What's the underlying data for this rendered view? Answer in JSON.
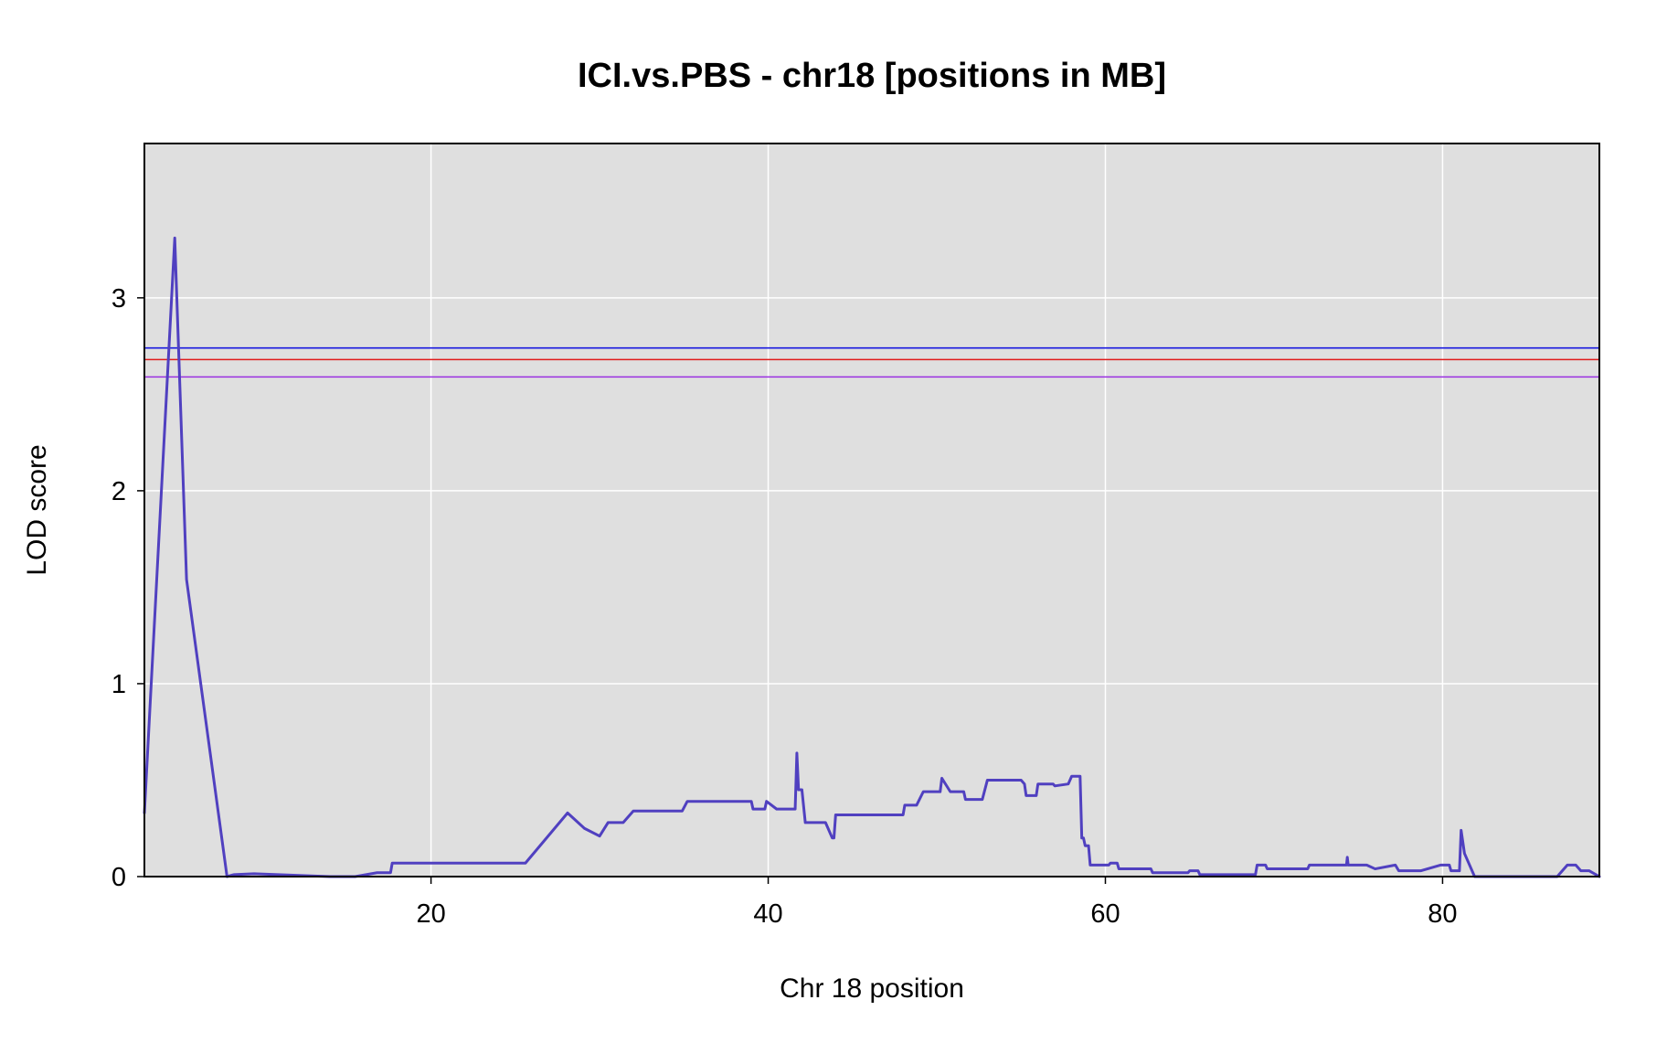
{
  "chart_data": {
    "type": "line",
    "title": "ICI.vs.PBS - chr18 [positions in MB]",
    "xlabel": "Chr 18 position",
    "ylabel": "LOD score",
    "xlim": [
      3,
      89.3
    ],
    "ylim": [
      0,
      3.8
    ],
    "x_ticks": [
      20,
      40,
      60,
      80
    ],
    "y_ticks": [
      0,
      1,
      2,
      3
    ],
    "x_tick_labels": [
      "20",
      "40",
      "60",
      "80"
    ],
    "y_tick_labels": [
      "0",
      "1",
      "2",
      "3"
    ],
    "grid": true,
    "colors": {
      "panel_background": "#dfdfdf",
      "grid": "#ffffff",
      "series": "#5040c0",
      "threshold_blue": "#1a1adf",
      "threshold_red": "#e01a1a",
      "threshold_purple": "#9a30e0",
      "frame": "#000000"
    },
    "thresholds": [
      {
        "y": 2.74,
        "color": "#1a1adf"
      },
      {
        "y": 2.68,
        "color": "#e01a1a"
      },
      {
        "y": 2.59,
        "color": "#9a30e0"
      }
    ],
    "series": [
      {
        "x": [
          3.0,
          4.8,
          5.5,
          7.9,
          8.3,
          9.5,
          14.0,
          15.5,
          16.8,
          17.6,
          17.7,
          21.0,
          22.0,
          25.6,
          28.1,
          29.1,
          30.0,
          30.5,
          31.4,
          32.0,
          34.9,
          35.2,
          39.0,
          39.1,
          39.8,
          39.9,
          40.5,
          41.6,
          41.7,
          41.8,
          42.0,
          42.2,
          43.4,
          43.8,
          43.9,
          44.0,
          48.0,
          48.1,
          48.8,
          49.2,
          50.2,
          50.3,
          50.8,
          51.6,
          51.7,
          52.7,
          53.0,
          55.0,
          55.2,
          55.3,
          55.9,
          56.0,
          56.9,
          57.0,
          57.8,
          58.0,
          58.5,
          58.6,
          58.7,
          58.8,
          59.0,
          59.1,
          60.2,
          60.3,
          60.7,
          60.8,
          62.7,
          62.8,
          64.9,
          65.0,
          65.5,
          65.6,
          68.9,
          69.0,
          69.5,
          69.6,
          72.0,
          72.1,
          74.3,
          74.35,
          74.4,
          75.5,
          76.0,
          77.2,
          77.4,
          78.7,
          79.9,
          80.4,
          80.5,
          81.0,
          81.1,
          81.3,
          81.9,
          82.3,
          86.8,
          87.4,
          87.9,
          88.2,
          88.7,
          89.3
        ],
        "y": [
          0.33,
          3.31,
          1.54,
          0.0,
          0.01,
          0.015,
          0.0,
          0.0,
          0.02,
          0.02,
          0.07,
          0.07,
          0.07,
          0.07,
          0.33,
          0.25,
          0.21,
          0.28,
          0.28,
          0.34,
          0.34,
          0.39,
          0.39,
          0.35,
          0.35,
          0.39,
          0.35,
          0.35,
          0.64,
          0.45,
          0.45,
          0.28,
          0.28,
          0.2,
          0.2,
          0.32,
          0.32,
          0.37,
          0.37,
          0.44,
          0.44,
          0.51,
          0.44,
          0.44,
          0.4,
          0.4,
          0.5,
          0.5,
          0.48,
          0.42,
          0.42,
          0.48,
          0.48,
          0.47,
          0.48,
          0.52,
          0.52,
          0.2,
          0.2,
          0.16,
          0.16,
          0.06,
          0.06,
          0.07,
          0.07,
          0.04,
          0.04,
          0.02,
          0.02,
          0.03,
          0.03,
          0.01,
          0.01,
          0.06,
          0.06,
          0.04,
          0.04,
          0.06,
          0.06,
          0.1,
          0.06,
          0.06,
          0.04,
          0.06,
          0.03,
          0.03,
          0.06,
          0.06,
          0.03,
          0.03,
          0.24,
          0.12,
          0.0,
          0.0,
          0.0,
          0.06,
          0.06,
          0.03,
          0.03,
          0.0
        ]
      }
    ]
  }
}
